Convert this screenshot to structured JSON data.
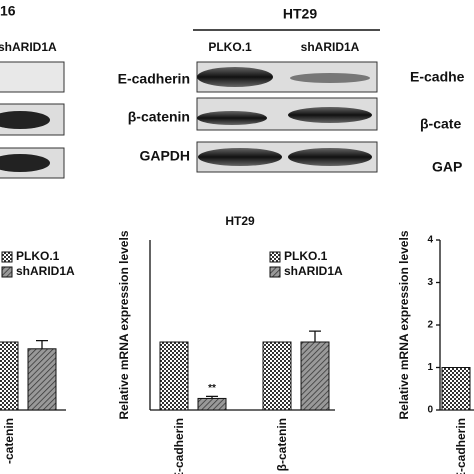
{
  "blots": {
    "left": {
      "title": "16",
      "lanes": [
        "shARID1A"
      ]
    },
    "center": {
      "title": "HT29",
      "lanes": [
        "PLKO.1",
        "shARID1A"
      ],
      "rows": [
        "E-cadherin",
        "β-catenin",
        "GAPDH"
      ]
    },
    "right": {
      "rows": [
        "E-cadhe",
        "β-cate",
        "GAP"
      ]
    }
  },
  "chart_data": [
    {
      "type": "bar",
      "categories": [
        "-catenin"
      ],
      "ylim": [
        0,
        2.5
      ],
      "legend": true,
      "series": [
        {
          "name": "PLKO.1",
          "pattern": "checker",
          "values": [
            1
          ]
        },
        {
          "name": "shARID1A",
          "pattern": "hatch",
          "values": [
            0.9
          ],
          "errors": [
            0.12
          ]
        }
      ]
    },
    {
      "type": "bar",
      "title": "HT29",
      "ylabel": "Relative mRNA expression levels",
      "categories": [
        "E-cadherin",
        "β-catenin"
      ],
      "ylim": [
        0,
        2.5
      ],
      "legend": true,
      "series": [
        {
          "name": "PLKO.1",
          "pattern": "checker",
          "values": [
            1,
            1
          ]
        },
        {
          "name": "shARID1A",
          "pattern": "hatch",
          "values": [
            0.17,
            1
          ],
          "errors": [
            0.03,
            0.16
          ],
          "significance": [
            "**",
            null
          ]
        }
      ]
    },
    {
      "type": "bar",
      "ylabel": "Relative mRNA expression levels",
      "categories": [
        "E-cadherin"
      ],
      "ylim": [
        0,
        4
      ],
      "yticks": [
        0,
        1,
        2,
        3,
        4
      ],
      "legend": false,
      "series": [
        {
          "pattern": "checker",
          "values": [
            1
          ]
        }
      ]
    }
  ]
}
